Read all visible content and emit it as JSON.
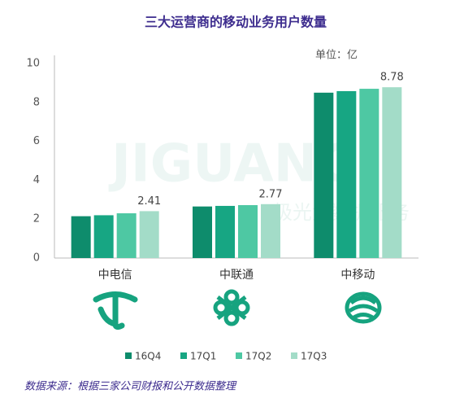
{
  "chart_data": {
    "type": "bar",
    "title": "三大运营商的移动业务用户数量",
    "unit": "单位：亿",
    "source": "数据来源：根据三家公司财报和公开数据整理",
    "watermark": "JIGUANG",
    "watermark_sub": "极光大数据服务",
    "categories": [
      "中电信",
      "中联通",
      "中移动"
    ],
    "series": [
      {
        "name": "16Q4",
        "color": "#0e8c6c",
        "values": [
          2.15,
          2.65,
          8.5
        ]
      },
      {
        "name": "17Q1",
        "color": "#17a683",
        "values": [
          2.2,
          2.68,
          8.58
        ]
      },
      {
        "name": "17Q2",
        "color": "#4ec8a3",
        "values": [
          2.3,
          2.72,
          8.7
        ]
      },
      {
        "name": "17Q3",
        "color": "#a3dcc8",
        "values": [
          2.41,
          2.77,
          8.78
        ],
        "show_labels": true
      }
    ],
    "ylim": [
      0,
      10
    ],
    "yticks": [
      0,
      2,
      4,
      6,
      8,
      10
    ],
    "grid": false,
    "legend": "bottom"
  }
}
